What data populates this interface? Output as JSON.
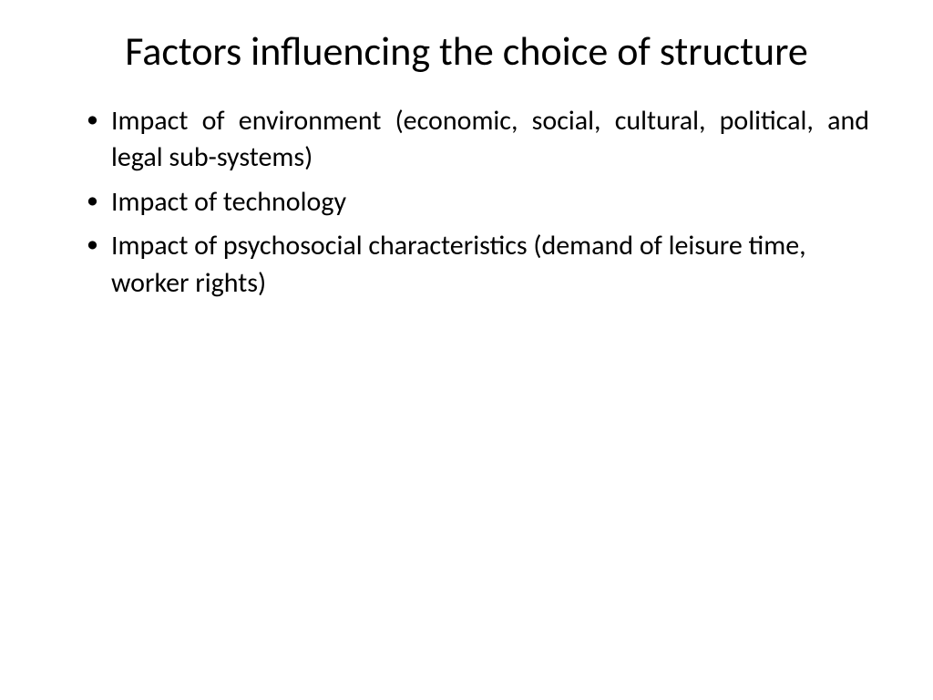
{
  "slide": {
    "title": "Factors influencing the choice of structure",
    "bullets": [
      {
        "text": "Impact of environment (economic, social, cultural, political, and legal sub-systems)",
        "justified": true
      },
      {
        "text": "Impact of technology",
        "justified": false
      },
      {
        "text": "Impact of psychosocial characteristics (demand of leisure time, worker rights)",
        "justified": false
      }
    ]
  },
  "styling": {
    "background_color": "#ffffff",
    "text_color": "#000000",
    "title_fontsize": 44,
    "body_fontsize": 30,
    "font_family": "Calibri"
  }
}
